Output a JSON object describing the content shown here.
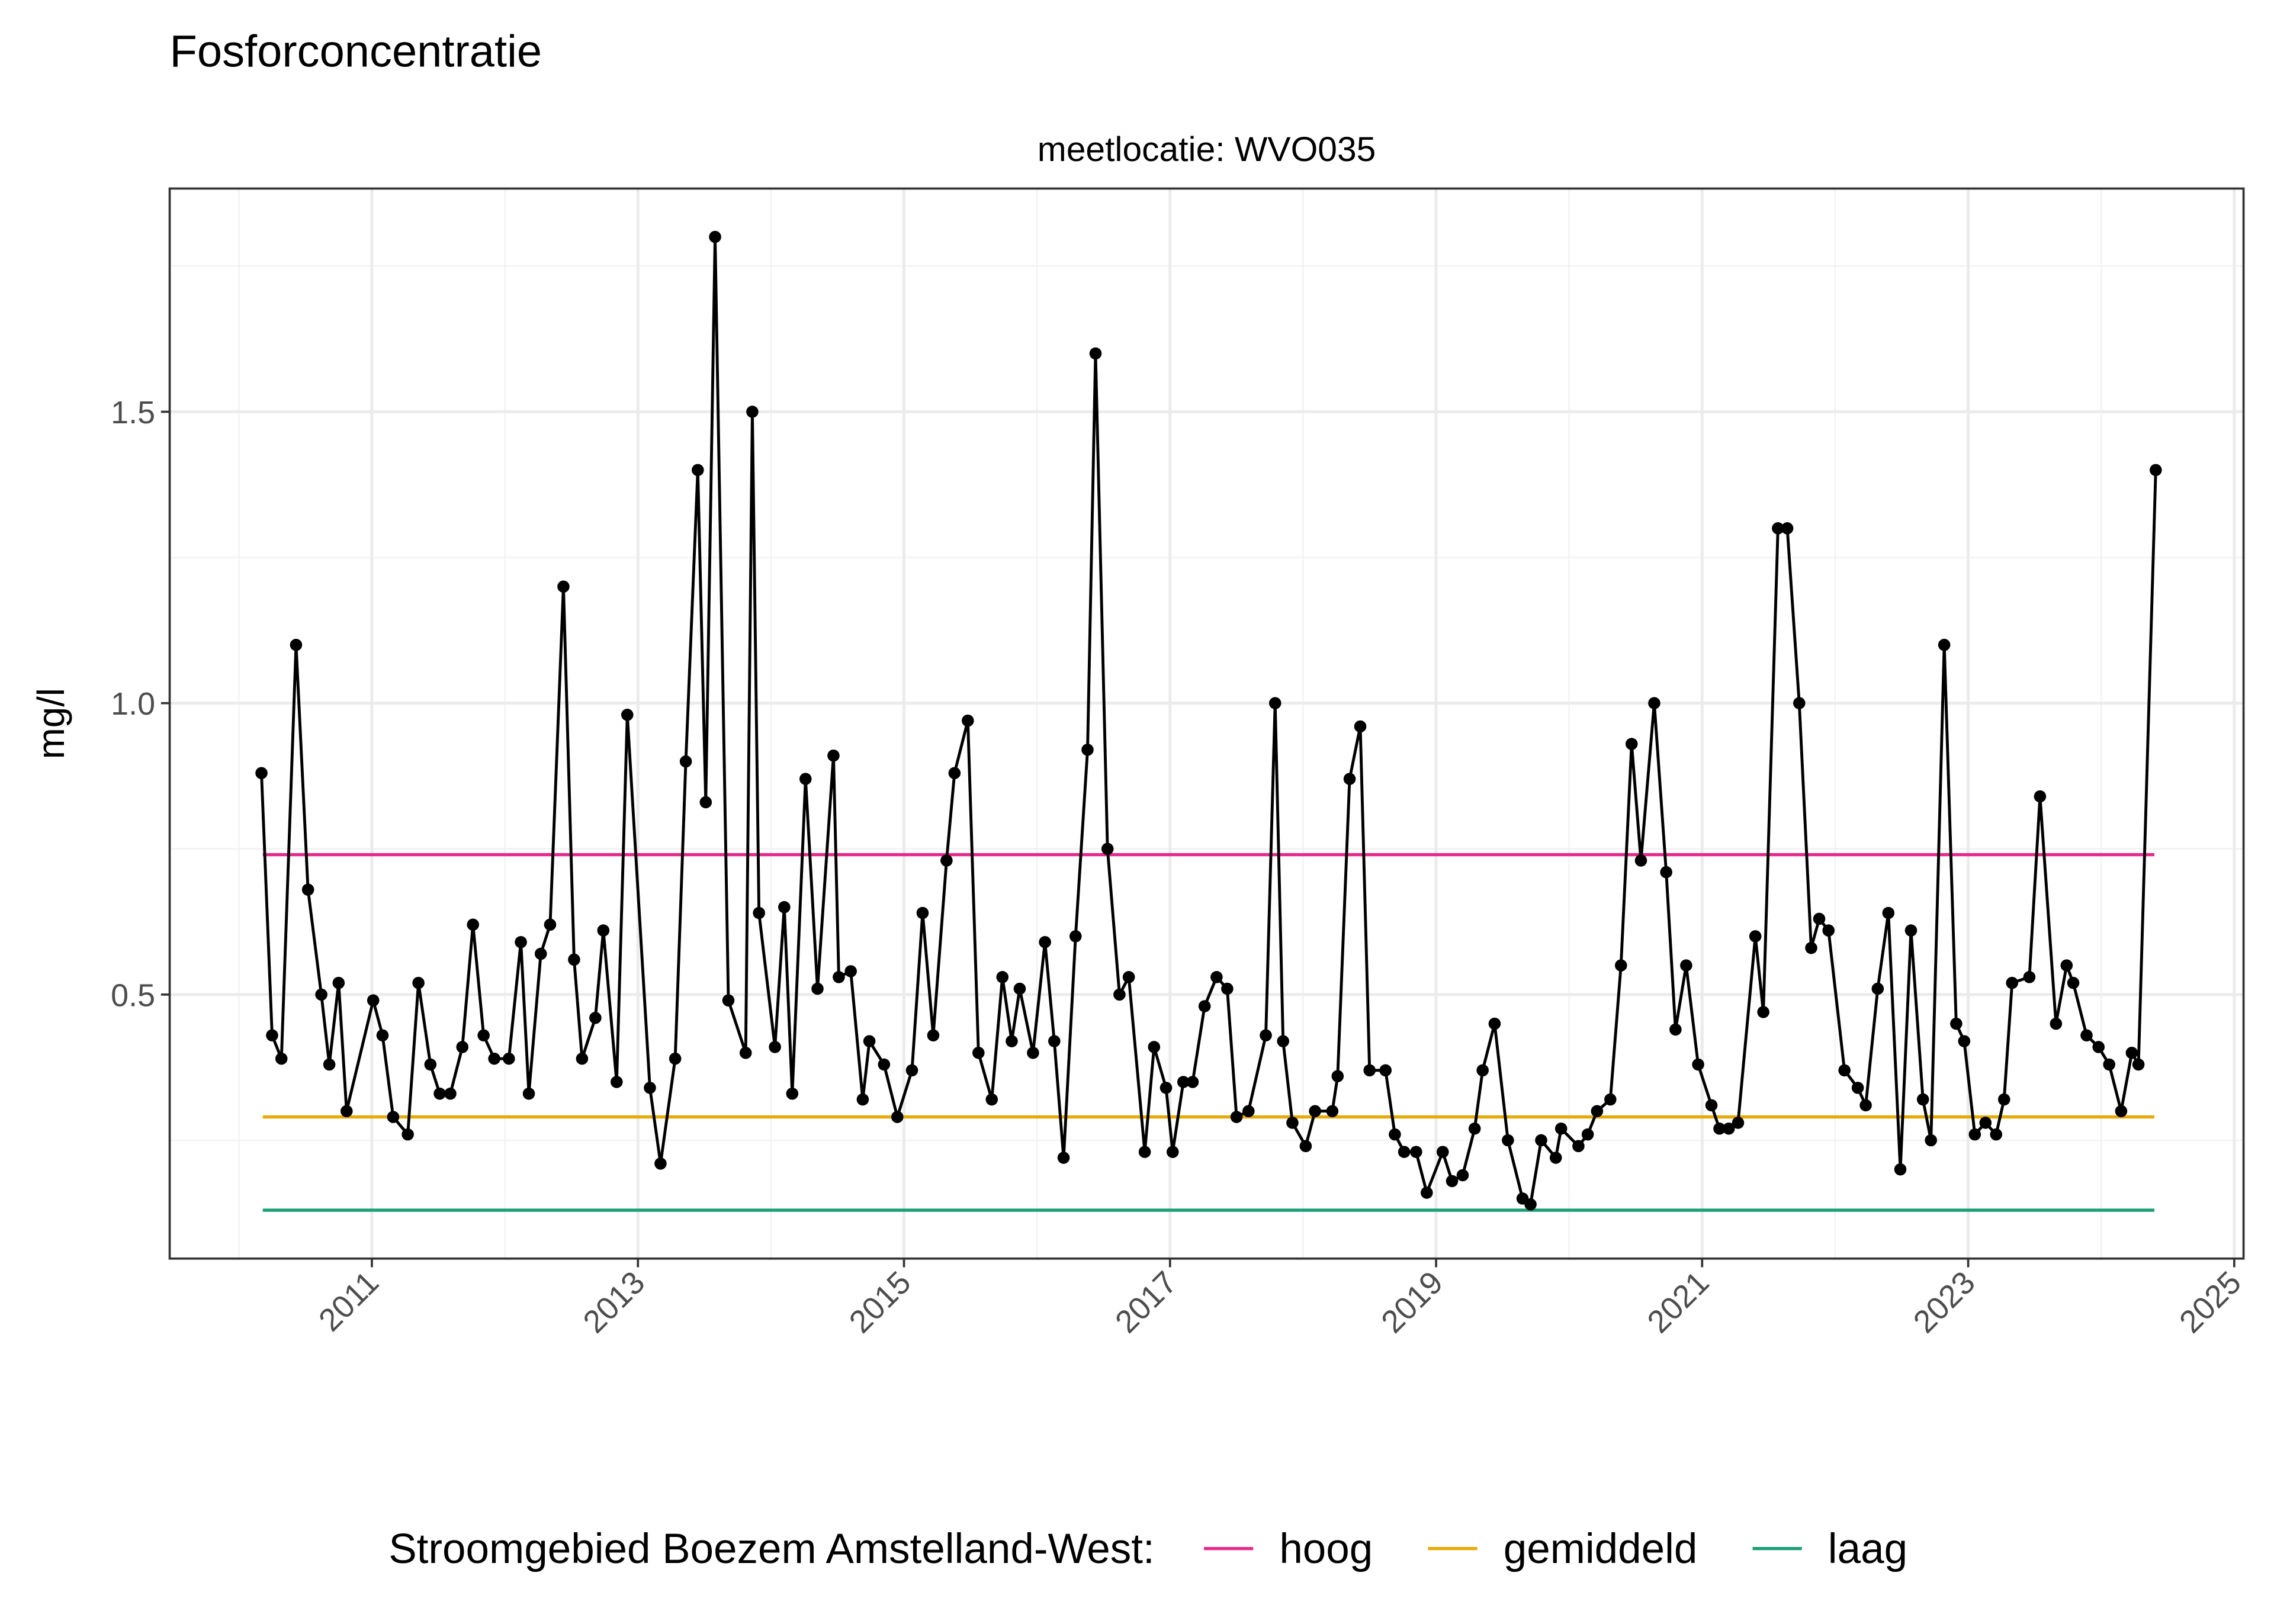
{
  "chart_data": {
    "type": "line",
    "title": "Fosforconcentratie",
    "subtitle": "meetlocatie: WVO035",
    "y_label": "mg/l",
    "color": "#000000",
    "x": [
      2010.17,
      2010.25,
      2010.32,
      2010.43,
      2010.52,
      2010.62,
      2010.68,
      2010.75,
      2010.81,
      2011.01,
      2011.08,
      2011.16,
      2011.27,
      2011.35,
      2011.44,
      2011.51,
      2011.59,
      2011.68,
      2011.76,
      2011.84,
      2011.92,
      2012.03,
      2012.12,
      2012.18,
      2012.27,
      2012.34,
      2012.44,
      2012.52,
      2012.58,
      2012.68,
      2012.74,
      2012.84,
      2012.92,
      2013.09,
      2013.17,
      2013.28,
      2013.36,
      2013.45,
      2013.51,
      2013.58,
      2013.68,
      2013.81,
      2013.86,
      2013.91,
      2014.03,
      2014.1,
      2014.16,
      2014.26,
      2014.35,
      2014.47,
      2014.51,
      2014.6,
      2014.69,
      2014.74,
      2014.85,
      2014.95,
      2015.06,
      2015.14,
      2015.22,
      2015.32,
      2015.38,
      2015.48,
      2015.56,
      2015.66,
      2015.74,
      2015.81,
      2015.87,
      2015.97,
      2016.06,
      2016.13,
      2016.2,
      2016.29,
      2016.38,
      2016.44,
      2016.53,
      2016.62,
      2016.69,
      2016.81,
      2016.88,
      2016.97,
      2017.02,
      2017.1,
      2017.17,
      2017.26,
      2017.35,
      2017.43,
      2017.5,
      2017.59,
      2017.72,
      2017.79,
      2017.85,
      2017.92,
      2018.02,
      2018.09,
      2018.22,
      2018.26,
      2018.35,
      2018.43,
      2018.5,
      2018.62,
      2018.69,
      2018.76,
      2018.85,
      2018.93,
      2019.05,
      2019.12,
      2019.2,
      2019.29,
      2019.35,
      2019.44,
      2019.54,
      2019.65,
      2019.71,
      2019.79,
      2019.9,
      2019.94,
      2020.07,
      2020.14,
      2020.21,
      2020.31,
      2020.39,
      2020.47,
      2020.54,
      2020.64,
      2020.73,
      2020.8,
      2020.88,
      2020.97,
      2021.07,
      2021.13,
      2021.2,
      2021.27,
      2021.4,
      2021.46,
      2021.57,
      2021.64,
      2021.73,
      2021.82,
      2021.88,
      2021.95,
      2022.07,
      2022.17,
      2022.23,
      2022.32,
      2022.4,
      2022.49,
      2022.57,
      2022.66,
      2022.72,
      2022.82,
      2022.91,
      2022.97,
      2023.05,
      2023.13,
      2023.21,
      2023.27,
      2023.33,
      2023.46,
      2023.54,
      2023.66,
      2023.74,
      2023.79,
      2023.89,
      2023.98,
      2024.06,
      2024.15,
      2024.23,
      2024.28,
      2024.41
    ],
    "values": [
      0.88,
      0.43,
      0.39,
      1.1,
      0.68,
      0.5,
      0.38,
      0.52,
      0.3,
      0.49,
      0.43,
      0.29,
      0.26,
      0.52,
      0.38,
      0.33,
      0.33,
      0.41,
      0.62,
      0.43,
      0.39,
      0.39,
      0.59,
      0.33,
      0.57,
      0.62,
      1.2,
      0.56,
      0.39,
      0.46,
      0.61,
      0.35,
      0.98,
      0.34,
      0.21,
      0.39,
      0.9,
      1.4,
      0.83,
      1.8,
      0.49,
      0.4,
      1.5,
      0.64,
      0.41,
      0.65,
      0.33,
      0.87,
      0.51,
      0.91,
      0.53,
      0.54,
      0.32,
      0.42,
      0.38,
      0.29,
      0.37,
      0.64,
      0.43,
      0.73,
      0.88,
      0.97,
      0.4,
      0.32,
      0.53,
      0.42,
      0.51,
      0.4,
      0.59,
      0.42,
      0.22,
      0.6,
      0.92,
      1.6,
      0.75,
      0.5,
      0.53,
      0.23,
      0.41,
      0.34,
      0.23,
      0.35,
      0.35,
      0.48,
      0.53,
      0.51,
      0.29,
      0.3,
      0.43,
      1.0,
      0.42,
      0.28,
      0.24,
      0.3,
      0.3,
      0.36,
      0.87,
      0.96,
      0.37,
      0.37,
      0.26,
      0.23,
      0.23,
      0.16,
      0.23,
      0.18,
      0.19,
      0.27,
      0.37,
      0.45,
      0.25,
      0.15,
      0.14,
      0.25,
      0.22,
      0.27,
      0.24,
      0.26,
      0.3,
      0.32,
      0.55,
      0.93,
      0.73,
      1.0,
      0.71,
      0.44,
      0.55,
      0.38,
      0.31,
      0.27,
      0.27,
      0.28,
      0.6,
      0.47,
      1.3,
      1.3,
      1.0,
      0.58,
      0.63,
      0.61,
      0.37,
      0.34,
      0.31,
      0.51,
      0.64,
      0.2,
      0.61,
      0.32,
      0.25,
      1.1,
      0.45,
      0.42,
      0.26,
      0.28,
      0.26,
      0.32,
      0.52,
      0.53,
      0.84,
      0.45,
      0.55,
      0.52,
      0.43,
      0.41,
      0.38,
      0.3,
      0.4,
      0.38,
      1.4
    ],
    "legend_title": "Stroomgebied Boezem Amstelland-West:",
    "reference_lines": [
      {
        "name": "hoog",
        "color": "#e7298a",
        "value": 0.74,
        "x": [
          2010.18,
          2024.4
        ]
      },
      {
        "name": "gemiddeld",
        "color": "#e6ab02",
        "value": 0.29,
        "x": [
          2010.18,
          2024.4
        ]
      },
      {
        "name": "laag",
        "color": "#1b9e77",
        "value": 0.13,
        "x": [
          2010.18,
          2024.4
        ]
      }
    ],
    "xlim": [
      2009.48,
      2025.07
    ],
    "xticks": [
      2011,
      2013,
      2015,
      2017,
      2019,
      2021,
      2023,
      2025
    ],
    "ylim": [
      0.047,
      1.883
    ],
    "yticks": [
      0.5,
      {
        "value": 1,
        "label": "1.0"
      },
      1.5
    ],
    "grid": true,
    "legend_position": "bottom"
  }
}
